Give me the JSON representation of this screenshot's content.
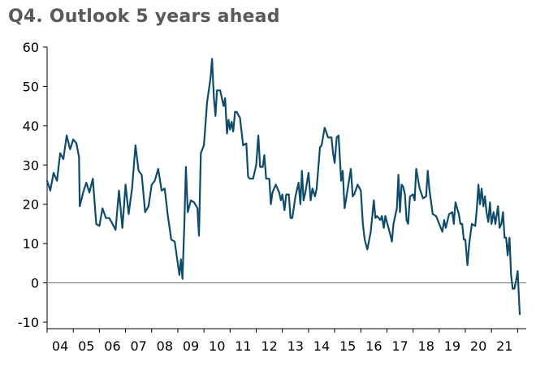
{
  "chart_data": {
    "type": "line",
    "title": "Q4. Outlook 5 years ahead",
    "xlabel": "",
    "ylabel": "",
    "ylim": [
      -10,
      60
    ],
    "yticks": [
      -10,
      0,
      10,
      20,
      30,
      40,
      50,
      60
    ],
    "xlim": [
      2003.0,
      2021.33
    ],
    "xtick_labels": [
      "04",
      "05",
      "06",
      "07",
      "08",
      "09",
      "10",
      "11",
      "12",
      "13",
      "14",
      "15",
      "16",
      "17",
      "18",
      "19",
      "20",
      "21"
    ],
    "reference_line": 0,
    "grid": false,
    "series": [
      {
        "name": "Outlook 5 years ahead",
        "color": "#0f4c6b",
        "points": [
          [
            2003.0,
            26
          ],
          [
            2003.12,
            23.5
          ],
          [
            2003.25,
            28
          ],
          [
            2003.38,
            26
          ],
          [
            2003.5,
            33
          ],
          [
            2003.62,
            31.5
          ],
          [
            2003.75,
            37.5
          ],
          [
            2003.88,
            34
          ],
          [
            2004.0,
            36.5
          ],
          [
            2004.12,
            35.5
          ],
          [
            2004.22,
            32
          ],
          [
            2004.25,
            19.5
          ],
          [
            2004.38,
            23
          ],
          [
            2004.5,
            25.5
          ],
          [
            2004.62,
            23
          ],
          [
            2004.75,
            26.5
          ],
          [
            2004.88,
            15
          ],
          [
            2005.0,
            14.5
          ],
          [
            2005.12,
            19
          ],
          [
            2005.25,
            16.5
          ],
          [
            2005.38,
            16.5
          ],
          [
            2005.5,
            15
          ],
          [
            2005.62,
            13.5
          ],
          [
            2005.75,
            23.5
          ],
          [
            2005.88,
            14
          ],
          [
            2006.0,
            25
          ],
          [
            2006.12,
            17.5
          ],
          [
            2006.25,
            24
          ],
          [
            2006.38,
            35
          ],
          [
            2006.5,
            28.5
          ],
          [
            2006.62,
            27.5
          ],
          [
            2006.75,
            18
          ],
          [
            2006.88,
            19.5
          ],
          [
            2007.0,
            25
          ],
          [
            2007.12,
            26
          ],
          [
            2007.25,
            29
          ],
          [
            2007.38,
            23.5
          ],
          [
            2007.5,
            24
          ],
          [
            2007.62,
            17
          ],
          [
            2007.75,
            11
          ],
          [
            2007.88,
            10.5
          ],
          [
            2008.0,
            5
          ],
          [
            2008.06,
            2
          ],
          [
            2008.12,
            6
          ],
          [
            2008.18,
            1
          ],
          [
            2008.25,
            15
          ],
          [
            2008.31,
            29.5
          ],
          [
            2008.38,
            18
          ],
          [
            2008.5,
            21
          ],
          [
            2008.62,
            20.5
          ],
          [
            2008.75,
            19
          ],
          [
            2008.81,
            12
          ],
          [
            2008.88,
            33
          ],
          [
            2009.0,
            35
          ],
          [
            2009.12,
            46
          ],
          [
            2009.25,
            52
          ],
          [
            2009.31,
            57
          ],
          [
            2009.38,
            47
          ],
          [
            2009.44,
            42.5
          ],
          [
            2009.5,
            49
          ],
          [
            2009.62,
            49
          ],
          [
            2009.75,
            45
          ],
          [
            2009.81,
            47
          ],
          [
            2009.88,
            38
          ],
          [
            2009.94,
            41.5
          ],
          [
            2010.0,
            39
          ],
          [
            2010.06,
            41
          ],
          [
            2010.12,
            38.5
          ],
          [
            2010.19,
            43.5
          ],
          [
            2010.25,
            43.5
          ],
          [
            2010.38,
            42
          ],
          [
            2010.5,
            35
          ],
          [
            2010.62,
            35.5
          ],
          [
            2010.69,
            27
          ],
          [
            2010.75,
            26.5
          ],
          [
            2010.88,
            26.5
          ],
          [
            2011.0,
            30
          ],
          [
            2011.08,
            37.5
          ],
          [
            2011.15,
            29.5
          ],
          [
            2011.25,
            29.5
          ],
          [
            2011.31,
            32.5
          ],
          [
            2011.38,
            26.5
          ],
          [
            2011.5,
            26.5
          ],
          [
            2011.56,
            20
          ],
          [
            2011.62,
            23
          ],
          [
            2011.75,
            25
          ],
          [
            2011.88,
            23
          ],
          [
            2011.94,
            21
          ],
          [
            2012.0,
            22.5
          ],
          [
            2012.08,
            18.5
          ],
          [
            2012.15,
            22.5
          ],
          [
            2012.25,
            22.5
          ],
          [
            2012.31,
            16.5
          ],
          [
            2012.38,
            16.5
          ],
          [
            2012.5,
            22
          ],
          [
            2012.62,
            25.5
          ],
          [
            2012.69,
            20
          ],
          [
            2012.75,
            28.5
          ],
          [
            2012.81,
            21
          ],
          [
            2012.88,
            23
          ],
          [
            2013.0,
            28
          ],
          [
            2013.08,
            21
          ],
          [
            2013.15,
            24
          ],
          [
            2013.25,
            22
          ],
          [
            2013.31,
            24
          ],
          [
            2013.44,
            34.5
          ],
          [
            2013.5,
            35
          ],
          [
            2013.62,
            39.5
          ],
          [
            2013.75,
            37
          ],
          [
            2013.88,
            37
          ],
          [
            2013.94,
            33
          ],
          [
            2014.0,
            30.5
          ],
          [
            2014.08,
            37
          ],
          [
            2014.15,
            37.5
          ],
          [
            2014.25,
            26
          ],
          [
            2014.31,
            28.5
          ],
          [
            2014.38,
            19
          ],
          [
            2014.5,
            24
          ],
          [
            2014.62,
            29
          ],
          [
            2014.69,
            22
          ],
          [
            2014.75,
            22.5
          ],
          [
            2014.88,
            25
          ],
          [
            2015.0,
            23.5
          ],
          [
            2015.08,
            15
          ],
          [
            2015.15,
            11
          ],
          [
            2015.25,
            8.5
          ],
          [
            2015.38,
            13
          ],
          [
            2015.5,
            21
          ],
          [
            2015.56,
            16.5
          ],
          [
            2015.62,
            17
          ],
          [
            2015.75,
            16
          ],
          [
            2015.81,
            17
          ],
          [
            2015.88,
            14
          ],
          [
            2015.94,
            17
          ],
          [
            2016.0,
            15.5
          ],
          [
            2016.12,
            12.5
          ],
          [
            2016.19,
            10.5
          ],
          [
            2016.25,
            15
          ],
          [
            2016.38,
            19
          ],
          [
            2016.44,
            27.5
          ],
          [
            2016.5,
            18
          ],
          [
            2016.56,
            25
          ],
          [
            2016.62,
            24.5
          ],
          [
            2016.69,
            22.5
          ],
          [
            2016.75,
            16
          ],
          [
            2016.81,
            15
          ],
          [
            2016.88,
            22
          ],
          [
            2017.0,
            22.5
          ],
          [
            2017.06,
            21
          ],
          [
            2017.12,
            29
          ],
          [
            2017.25,
            24
          ],
          [
            2017.38,
            21.5
          ],
          [
            2017.5,
            22
          ],
          [
            2017.56,
            28.5
          ],
          [
            2017.62,
            24
          ],
          [
            2017.75,
            17.5
          ],
          [
            2017.88,
            17
          ],
          [
            2018.0,
            15
          ],
          [
            2018.12,
            13
          ],
          [
            2018.19,
            16
          ],
          [
            2018.25,
            14
          ],
          [
            2018.38,
            17.5
          ],
          [
            2018.5,
            18
          ],
          [
            2018.56,
            15
          ],
          [
            2018.62,
            20.5
          ],
          [
            2018.75,
            17.5
          ],
          [
            2018.81,
            15
          ],
          [
            2018.88,
            15
          ],
          [
            2018.94,
            11
          ],
          [
            2019.0,
            11
          ],
          [
            2019.08,
            4.5
          ],
          [
            2019.15,
            10
          ],
          [
            2019.25,
            15
          ],
          [
            2019.38,
            14.5
          ],
          [
            2019.44,
            19
          ],
          [
            2019.5,
            25
          ],
          [
            2019.56,
            20
          ],
          [
            2019.62,
            24
          ],
          [
            2019.69,
            19.5
          ],
          [
            2019.75,
            22
          ],
          [
            2019.81,
            18
          ],
          [
            2019.88,
            15.5
          ],
          [
            2019.94,
            20.5
          ],
          [
            2020.0,
            15
          ],
          [
            2020.08,
            18
          ],
          [
            2020.15,
            15
          ],
          [
            2020.25,
            19.5
          ],
          [
            2020.31,
            14
          ],
          [
            2020.38,
            15
          ],
          [
            2020.44,
            18
          ],
          [
            2020.5,
            11.5
          ],
          [
            2020.56,
            11.5
          ],
          [
            2020.62,
            7
          ],
          [
            2020.69,
            11.5
          ],
          [
            2020.75,
            2
          ],
          [
            2020.81,
            -1.5
          ],
          [
            2020.88,
            -1.5
          ],
          [
            2020.94,
            0.5
          ],
          [
            2021.0,
            3
          ],
          [
            2021.08,
            -8
          ]
        ]
      }
    ]
  }
}
